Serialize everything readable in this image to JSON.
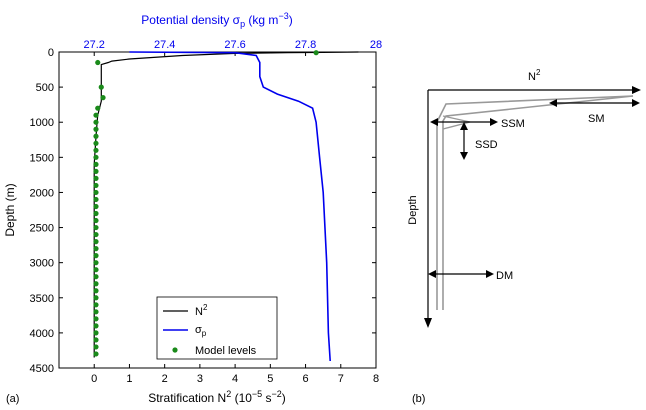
{
  "chart_data": [
    {
      "panel_label": "(a)",
      "type": "line",
      "top_axis": {
        "title_main": "Potential density σ",
        "title_sub": "p",
        "title_units": " (kg m",
        "title_exp": "−3",
        "title_close": ")",
        "range": [
          27.1,
          28.0
        ],
        "ticks": [
          27.2,
          27.4,
          27.6,
          27.8,
          28.0
        ],
        "tick_labels": [
          "27.2",
          "27.4",
          "27.6",
          "27.8",
          "28"
        ],
        "color": "#0000ee"
      },
      "bottom_axis": {
        "title_main": "Stratification N",
        "title_sup": "2",
        "title_units": " (10",
        "title_exp1": "−5",
        "title_units2": " s",
        "title_exp2": "−2",
        "title_close": ")",
        "range": [
          -1,
          8
        ],
        "ticks": [
          0,
          1,
          2,
          3,
          4,
          5,
          6,
          7,
          8
        ],
        "tick_labels": [
          "0",
          "1",
          "2",
          "3",
          "4",
          "5",
          "6",
          "7",
          "8"
        ]
      },
      "y_axis": {
        "title": "Depth (m)",
        "range": [
          0,
          4500
        ],
        "inverted": true,
        "ticks": [
          0,
          500,
          1000,
          1500,
          2000,
          2500,
          3000,
          3500,
          4000,
          4500
        ],
        "tick_labels": [
          "0",
          "500",
          "1000",
          "1500",
          "2000",
          "2500",
          "3000",
          "3500",
          "4000",
          "4500"
        ]
      },
      "legend": {
        "placement": "bottom-right",
        "entries": [
          {
            "label_main": "N",
            "label_sup": "2",
            "label_sub": "",
            "style": "line",
            "color": "#000000"
          },
          {
            "label_main": "σ",
            "label_sup": "",
            "label_sub": "p",
            "style": "line",
            "color": "#0000ee"
          },
          {
            "label_main": "Model levels",
            "label_sup": "",
            "label_sub": "",
            "style": "marker",
            "color": "#1a8a1a"
          }
        ]
      },
      "series": [
        {
          "name": "N2",
          "axis": "bottom",
          "color": "#000000",
          "points": [
            [
              7.5,
              0
            ],
            [
              6.5,
              5
            ],
            [
              5.5,
              10
            ],
            [
              4,
              20
            ],
            [
              2.5,
              50
            ],
            [
              1.0,
              100
            ],
            [
              0.5,
              130
            ],
            [
              0.4,
              150
            ],
            [
              0.2,
              180
            ],
            [
              0.2,
              250
            ],
            [
              0.2,
              400
            ],
            [
              0.2,
              500
            ],
            [
              0.2,
              700
            ],
            [
              0.1,
              900
            ],
            [
              0.05,
              1200
            ],
            [
              0.0,
              1600
            ],
            [
              0.0,
              2000
            ],
            [
              0.0,
              3000
            ],
            [
              0.0,
              4000
            ],
            [
              0.0,
              4350
            ]
          ]
        },
        {
          "name": "sigma_p",
          "axis": "top",
          "color": "#0000ee",
          "points": [
            [
              27.3,
              0
            ],
            [
              27.6,
              10
            ],
            [
              27.66,
              50
            ],
            [
              27.67,
              150
            ],
            [
              27.67,
              350
            ],
            [
              27.68,
              500
            ],
            [
              27.72,
              600
            ],
            [
              27.78,
              700
            ],
            [
              27.82,
              800
            ],
            [
              27.83,
              1000
            ],
            [
              27.84,
              1500
            ],
            [
              27.85,
              2000
            ],
            [
              27.86,
              3000
            ],
            [
              27.865,
              4000
            ],
            [
              27.87,
              4400
            ]
          ]
        },
        {
          "name": "model_levels",
          "axis": "bottom",
          "style": "marker",
          "color": "#1a8a1a",
          "points": [
            [
              6.3,
              10
            ],
            [
              0.1,
              150
            ],
            [
              0.2,
              500
            ],
            [
              0.25,
              650
            ],
            [
              0.1,
              800
            ],
            [
              0.05,
              900
            ],
            [
              0.05,
              1000
            ],
            [
              0.05,
              1100
            ],
            [
              0.05,
              1200
            ],
            [
              0.05,
              1300
            ],
            [
              0.05,
              1400
            ],
            [
              0.05,
              1500
            ],
            [
              0.05,
              1600
            ],
            [
              0.05,
              1700
            ],
            [
              0.05,
              1800
            ],
            [
              0.05,
              1900
            ],
            [
              0.05,
              2000
            ],
            [
              0.05,
              2100
            ],
            [
              0.05,
              2200
            ],
            [
              0.05,
              2300
            ],
            [
              0.05,
              2400
            ],
            [
              0.05,
              2500
            ],
            [
              0.05,
              2600
            ],
            [
              0.05,
              2700
            ],
            [
              0.05,
              2800
            ],
            [
              0.05,
              2900
            ],
            [
              0.05,
              3000
            ],
            [
              0.05,
              3100
            ],
            [
              0.05,
              3200
            ],
            [
              0.05,
              3300
            ],
            [
              0.05,
              3400
            ],
            [
              0.05,
              3500
            ],
            [
              0.05,
              3600
            ],
            [
              0.05,
              3700
            ],
            [
              0.05,
              3800
            ],
            [
              0.05,
              3900
            ],
            [
              0.05,
              4000
            ],
            [
              0.05,
              4100
            ],
            [
              0.05,
              4200
            ],
            [
              0.05,
              4300
            ]
          ]
        }
      ]
    },
    {
      "panel_label": "(b)",
      "type": "schematic",
      "top_label_main": "N",
      "top_label_sup": "2",
      "side_label": "Depth",
      "annotations": [
        "SM",
        "SSM",
        "SSD",
        "DM"
      ]
    }
  ]
}
